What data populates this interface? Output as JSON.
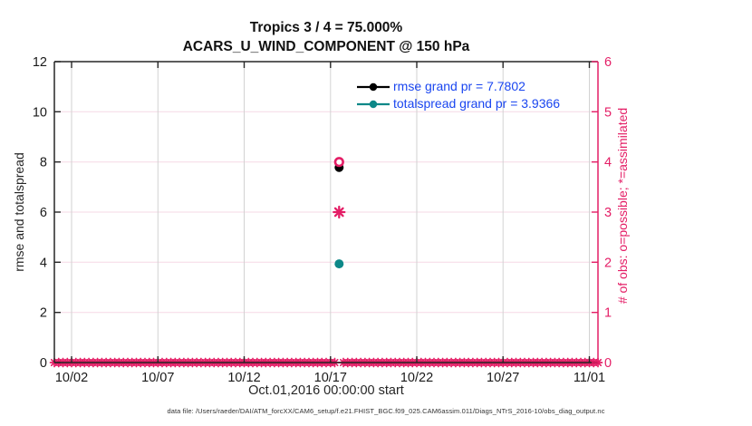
{
  "figure": {
    "footer": "data file: /Users/raeder/DAI/ATM_forcXX/CAM6_setup/f.e21.FHIST_BGC.f09_025.CAM6assim.011/Diags_NTrS_2016-10/obs_diag_output.nc"
  },
  "colors": {
    "pink": "#e41e66",
    "teal": "#0d8888",
    "black": "#000000",
    "legend_text": "#1a46f0",
    "axis": "#262626",
    "grid_vertical": "#d2d2d2",
    "grid_horizontal": "#f6d9e6",
    "tick_label": "#1a1a1a",
    "footer_text": "#333333"
  },
  "chart_data": {
    "type": "scatter",
    "title": "Tropics 3 / 4 = 75.000%",
    "subtitle": "ACARS_U_WIND_COMPONENT @ 150 hPa",
    "xlabel": "Oct.01,2016 00:00:00 start",
    "ylabel_left": "rmse and totalspread",
    "ylabel_right": "# of obs: o=possible; *=assimilated",
    "x_ticks": [
      {
        "label": "10/02",
        "day": 1
      },
      {
        "label": "10/07",
        "day": 6
      },
      {
        "label": "10/12",
        "day": 11
      },
      {
        "label": "10/17",
        "day": 16
      },
      {
        "label": "10/22",
        "day": 21
      },
      {
        "label": "10/27",
        "day": 26
      },
      {
        "label": "11/01",
        "day": 31
      }
    ],
    "x_range_days": [
      0,
      31.5
    ],
    "y_left_ticks": [
      0,
      2,
      4,
      6,
      8,
      10,
      12
    ],
    "y_left_range": [
      0,
      12
    ],
    "y_right_ticks": [
      0,
      1,
      2,
      3,
      4,
      5,
      6
    ],
    "y_right_range": [
      0,
      6
    ],
    "grid": true,
    "legend_position": "top-center-inside",
    "legend": [
      {
        "label": "rmse grand pr = 7.7802",
        "value": 7.7802,
        "color": "#000000"
      },
      {
        "label": "totalspread grand pr = 3.9366",
        "value": 3.9366,
        "color": "#0d8888"
      }
    ],
    "series": [
      {
        "name": "rmse",
        "axis": "left",
        "marker": "filled-circle",
        "color": "#000000",
        "points": [
          {
            "day": 16.5,
            "value": 7.7802
          }
        ]
      },
      {
        "name": "totalspread",
        "axis": "left",
        "marker": "filled-circle",
        "color": "#0d8888",
        "points": [
          {
            "day": 16.5,
            "value": 3.9366
          }
        ]
      },
      {
        "name": "possible-count",
        "axis": "right",
        "marker": "open-circle",
        "color": "#e41e66",
        "points": [
          {
            "day": 16.5,
            "value": 4
          }
        ]
      },
      {
        "name": "assimilated-count",
        "axis": "right",
        "marker": "asterisk",
        "color": "#e41e66",
        "points": [
          {
            "day": 16.5,
            "value": 3
          }
        ]
      }
    ],
    "zero_observation_band": {
      "axis": "right",
      "value": 0,
      "marker": "asterisk",
      "color": "#e41e66",
      "step_day": 0.25,
      "segments": [
        [
          0,
          16.25
        ],
        [
          16.75,
          31.5
        ]
      ]
    }
  }
}
